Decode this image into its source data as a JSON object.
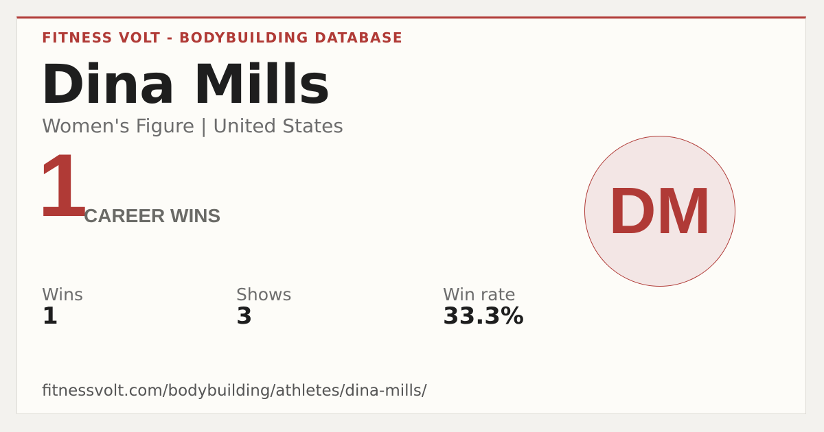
{
  "header": {
    "site": "FITNESS VOLT - BODYBUILDING DATABASE"
  },
  "athlete": {
    "name": "Dina Mills",
    "subtitle": "Women's Figure | United States",
    "initials": "DM"
  },
  "headline": {
    "number": "1",
    "label": "CAREER WINS"
  },
  "stats": [
    {
      "label": "Wins",
      "value": "1"
    },
    {
      "label": "Shows",
      "value": "3"
    },
    {
      "label": "Win rate",
      "value": "33.3%"
    }
  ],
  "footer": {
    "url": "fitnessvolt.com/bodybuilding/athletes/dina-mills/"
  }
}
